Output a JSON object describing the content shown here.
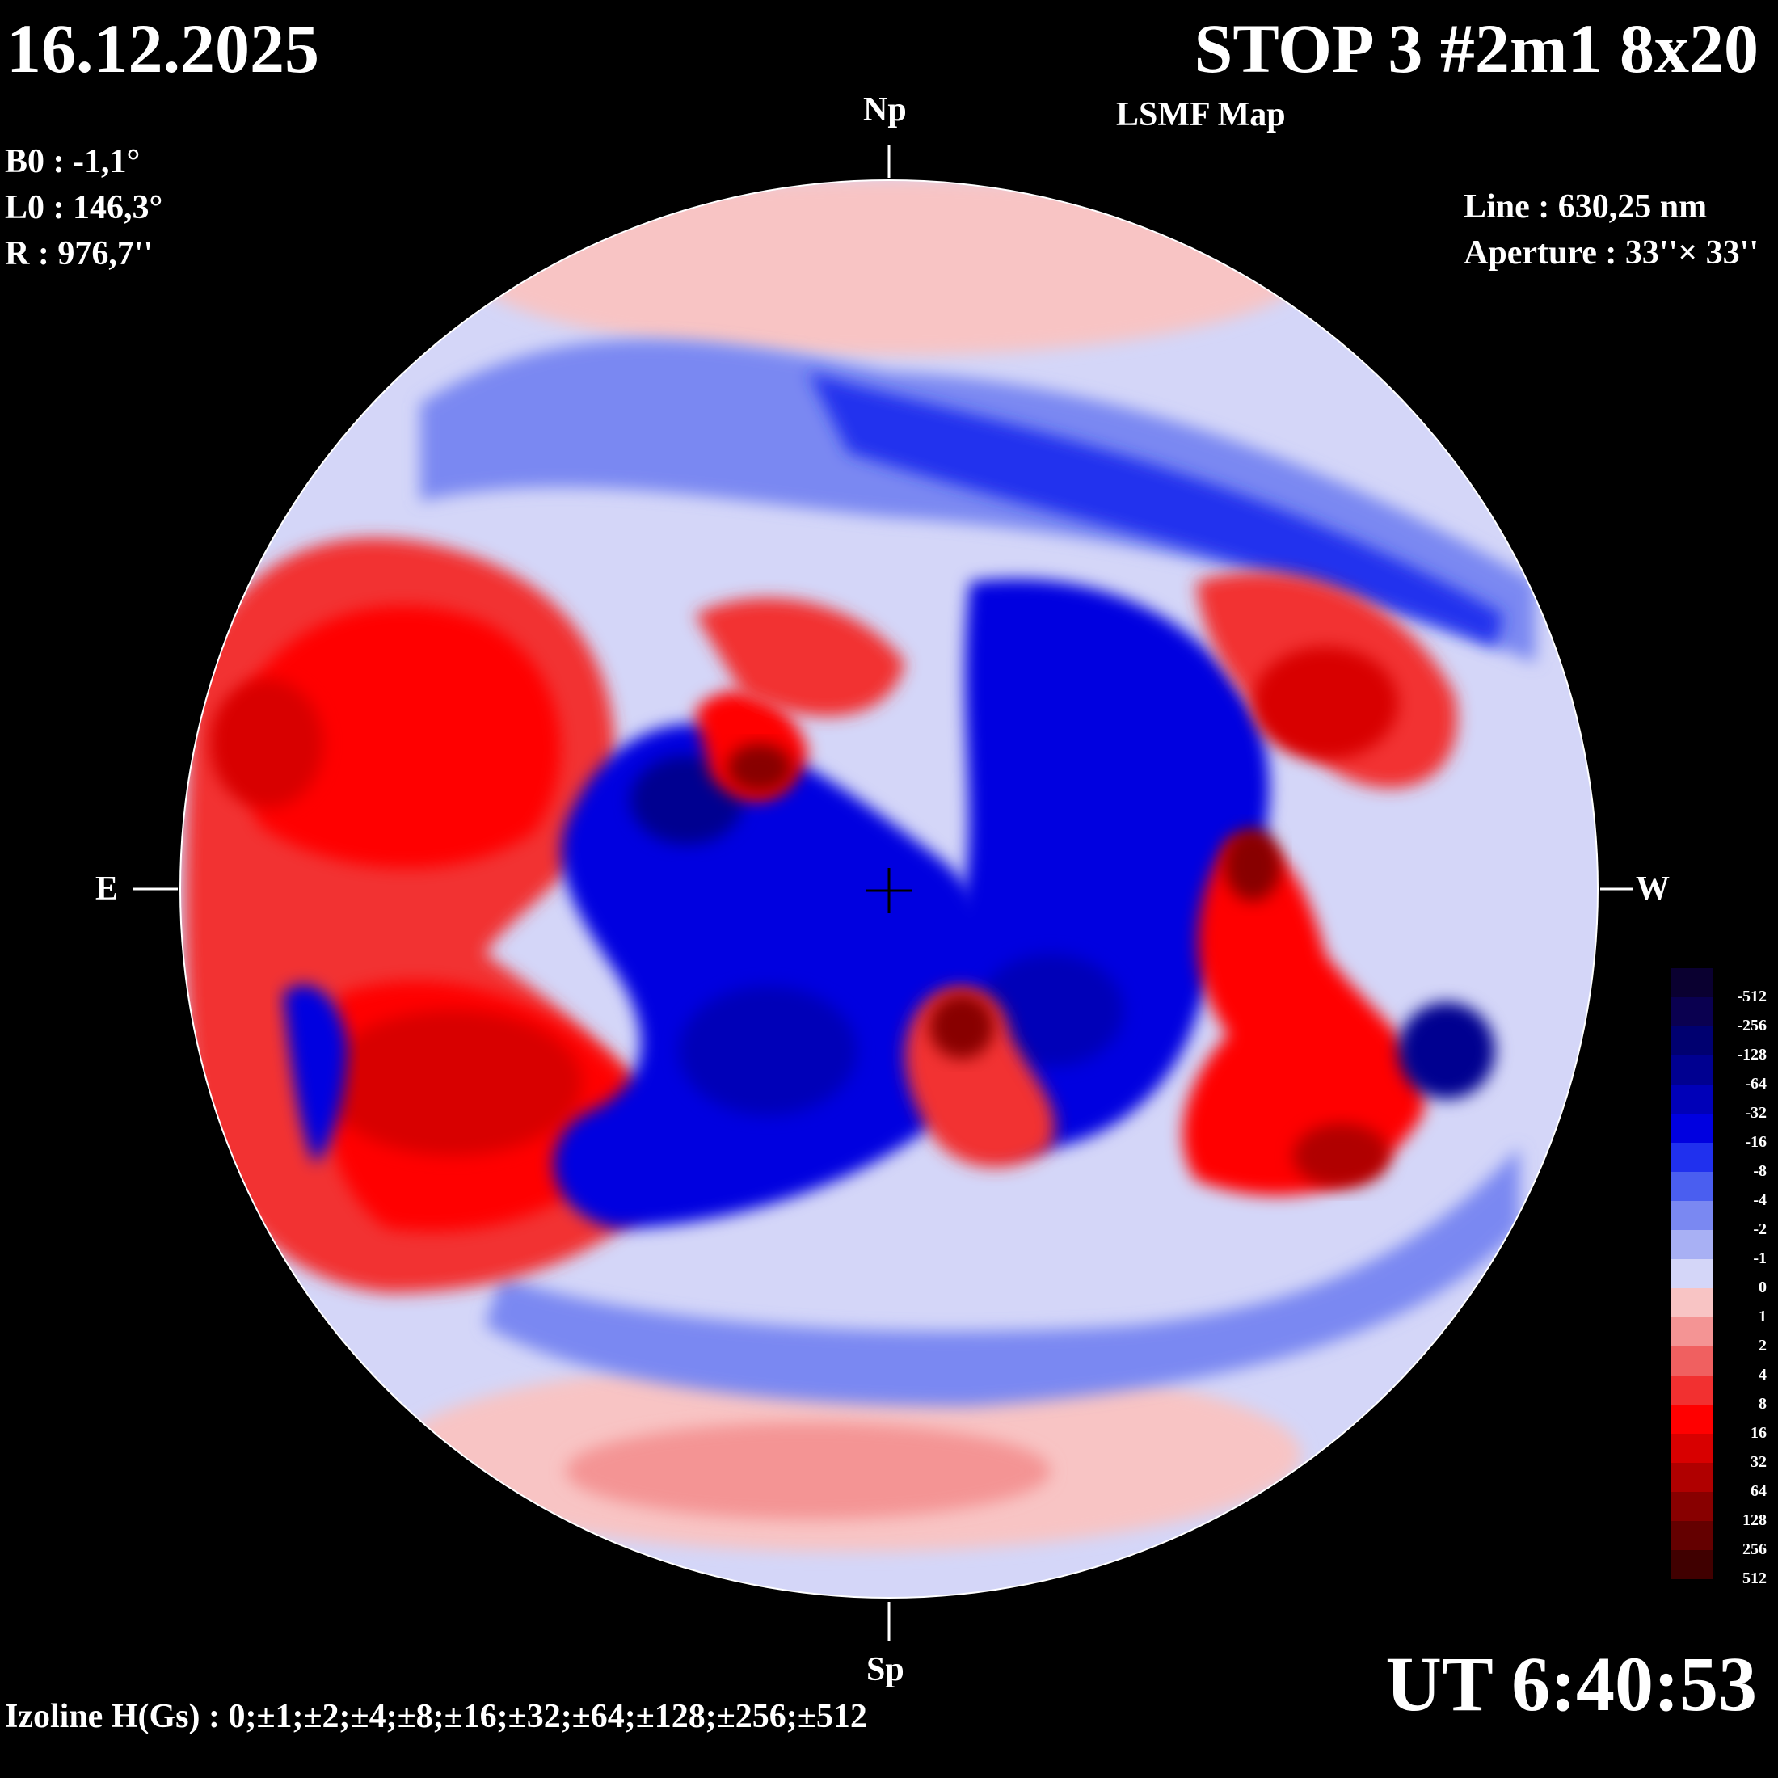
{
  "header": {
    "date": "16.12.2025",
    "title": "STOP 3 #2m1 8x20",
    "subtitle": "LSMF  Map"
  },
  "observation": {
    "b0": "B0 : -1,1°",
    "l0": "L0 : 146,3°",
    "r": "R  : 976,7''",
    "line": "Line :  630,25 nm",
    "aperture": "Aperture : 33''× 33''"
  },
  "footer": {
    "ut": "UT 6:40:53",
    "izoline": "Izoline H(Gs) : 0;±1;±2;±4;±8;±16;±32;±64;±128;±256;±512"
  },
  "directions": {
    "north": "Np",
    "south": "Sp",
    "east": "E",
    "west": "W"
  },
  "legend": {
    "levels": [
      {
        "label": "-512",
        "color": "#0a0030"
      },
      {
        "label": "-256",
        "color": "#0a0050"
      },
      {
        "label": "-128",
        "color": "#000070"
      },
      {
        "label": "-64",
        "color": "#000090"
      },
      {
        "label": "-32",
        "color": "#0000b8"
      },
      {
        "label": "-16",
        "color": "#0000e0"
      },
      {
        "label": "-8",
        "color": "#2030ee"
      },
      {
        "label": "-4",
        "color": "#4a5ef0"
      },
      {
        "label": "-2",
        "color": "#7a88f2"
      },
      {
        "label": "-1",
        "color": "#a8b0f4"
      },
      {
        "label": "0",
        "color": "#d4d6f8"
      },
      {
        "label": "1",
        "color": "#f8c4c4"
      },
      {
        "label": "2",
        "color": "#f49494"
      },
      {
        "label": "4",
        "color": "#f06060"
      },
      {
        "label": "8",
        "color": "#f23030"
      },
      {
        "label": "16",
        "color": "#ff0000"
      },
      {
        "label": "32",
        "color": "#d80000"
      },
      {
        "label": "64",
        "color": "#b00000"
      },
      {
        "label": "128",
        "color": "#880000"
      },
      {
        "label": "256",
        "color": "#640000"
      },
      {
        "label": "512",
        "color": "#400000"
      }
    ]
  },
  "map_regions": {
    "background_color": "#d4d6f8",
    "negative_color": "#0000e0",
    "positive_color": "#ff0000"
  }
}
